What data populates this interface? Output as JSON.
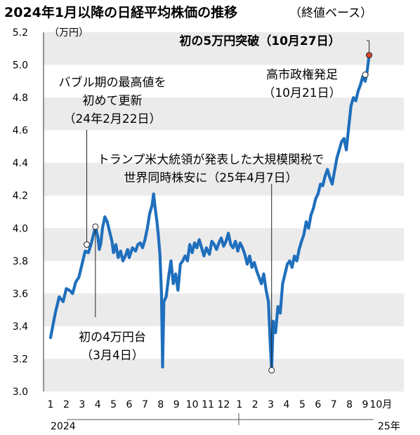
{
  "chart_data": {
    "type": "line",
    "title": "2024年1月以降の日経平均株価の推移",
    "subtitle": "（終値ベース）",
    "ylabel": "（万円）",
    "ylim": [
      3.0,
      5.2
    ],
    "yticks": [
      "3.0",
      "3.2",
      "3.4",
      "3.6",
      "3.8",
      "4.0",
      "4.2",
      "4.4",
      "4.6",
      "4.8",
      "5.0",
      "5.2"
    ],
    "xticks": [
      "1",
      "2",
      "3",
      "4",
      "5",
      "6",
      "7",
      "8",
      "9",
      "10",
      "11",
      "12",
      "1",
      "2",
      "3",
      "4",
      "5",
      "6",
      "7",
      "8",
      "9",
      "10月"
    ],
    "year_labels": [
      "2024",
      "25年"
    ],
    "grid": "horizontal bands",
    "line_color": "#1f6fbd",
    "series": [
      {
        "values": [
          [
            0.0,
            3.33
          ],
          [
            0.3,
            3.48
          ],
          [
            0.55,
            3.58
          ],
          [
            0.8,
            3.55
          ],
          [
            1.0,
            3.63
          ],
          [
            1.2,
            3.62
          ],
          [
            1.4,
            3.6
          ],
          [
            1.6,
            3.67
          ],
          [
            1.8,
            3.7
          ],
          [
            2.0,
            3.78
          ],
          [
            2.2,
            3.86
          ],
          [
            2.4,
            3.85
          ],
          [
            2.6,
            3.91
          ],
          [
            2.75,
            3.97
          ],
          [
            2.85,
            4.01
          ],
          [
            3.0,
            3.95
          ],
          [
            3.1,
            3.87
          ],
          [
            3.2,
            3.91
          ],
          [
            3.3,
            4.0
          ],
          [
            3.45,
            4.07
          ],
          [
            3.6,
            4.04
          ],
          [
            3.75,
            3.98
          ],
          [
            3.9,
            3.92
          ],
          [
            4.0,
            3.85
          ],
          [
            4.15,
            3.9
          ],
          [
            4.3,
            3.82
          ],
          [
            4.45,
            3.86
          ],
          [
            4.6,
            3.8
          ],
          [
            4.75,
            3.83
          ],
          [
            4.9,
            3.87
          ],
          [
            5.0,
            3.82
          ],
          [
            5.2,
            3.88
          ],
          [
            5.4,
            3.86
          ],
          [
            5.55,
            3.9
          ],
          [
            5.7,
            3.91
          ],
          [
            5.85,
            3.88
          ],
          [
            6.0,
            3.93
          ],
          [
            6.15,
            4.0
          ],
          [
            6.3,
            4.09
          ],
          [
            6.45,
            4.14
          ],
          [
            6.55,
            4.21
          ],
          [
            6.65,
            4.12
          ],
          [
            6.75,
            4.05
          ],
          [
            6.85,
            3.96
          ],
          [
            6.95,
            3.84
          ],
          [
            7.05,
            3.6
          ],
          [
            7.12,
            3.15
          ],
          [
            7.2,
            3.55
          ],
          [
            7.35,
            3.58
          ],
          [
            7.5,
            3.7
          ],
          [
            7.65,
            3.8
          ],
          [
            7.8,
            3.66
          ],
          [
            7.95,
            3.72
          ],
          [
            8.1,
            3.62
          ],
          [
            8.25,
            3.78
          ],
          [
            8.4,
            3.8
          ],
          [
            8.55,
            3.83
          ],
          [
            8.7,
            3.8
          ],
          [
            8.85,
            3.9
          ],
          [
            9.0,
            3.85
          ],
          [
            9.15,
            3.91
          ],
          [
            9.3,
            3.88
          ],
          [
            9.45,
            3.93
          ],
          [
            9.6,
            3.88
          ],
          [
            9.75,
            3.83
          ],
          [
            9.9,
            3.88
          ],
          [
            10.1,
            3.84
          ],
          [
            10.25,
            3.92
          ],
          [
            10.4,
            3.9
          ],
          [
            10.55,
            3.87
          ],
          [
            10.7,
            3.91
          ],
          [
            10.85,
            3.94
          ],
          [
            11.0,
            3.89
          ],
          [
            11.15,
            3.92
          ],
          [
            11.3,
            3.97
          ],
          [
            11.45,
            3.9
          ],
          [
            11.6,
            3.88
          ],
          [
            11.75,
            3.92
          ],
          [
            11.9,
            3.86
          ],
          [
            12.05,
            3.91
          ],
          [
            12.2,
            3.88
          ],
          [
            12.35,
            3.84
          ],
          [
            12.5,
            3.78
          ],
          [
            12.65,
            3.83
          ],
          [
            12.8,
            3.76
          ],
          [
            12.95,
            3.79
          ],
          [
            13.1,
            3.74
          ],
          [
            13.25,
            3.7
          ],
          [
            13.4,
            3.66
          ],
          [
            13.55,
            3.72
          ],
          [
            13.7,
            3.62
          ],
          [
            13.85,
            3.55
          ],
          [
            13.95,
            3.32
          ],
          [
            14.05,
            3.13
          ],
          [
            14.15,
            3.43
          ],
          [
            14.3,
            3.36
          ],
          [
            14.45,
            3.52
          ],
          [
            14.6,
            3.48
          ],
          [
            14.75,
            3.66
          ],
          [
            14.9,
            3.72
          ],
          [
            15.05,
            3.78
          ],
          [
            15.2,
            3.8
          ],
          [
            15.35,
            3.76
          ],
          [
            15.5,
            3.83
          ],
          [
            15.65,
            3.8
          ],
          [
            15.8,
            3.87
          ],
          [
            15.95,
            3.92
          ],
          [
            16.1,
            3.96
          ],
          [
            16.25,
            4.04
          ],
          [
            16.4,
            4.0
          ],
          [
            16.55,
            4.08
          ],
          [
            16.7,
            4.12
          ],
          [
            16.85,
            4.18
          ],
          [
            17.0,
            4.21
          ],
          [
            17.15,
            4.27
          ],
          [
            17.3,
            4.26
          ],
          [
            17.45,
            4.32
          ],
          [
            17.6,
            4.36
          ],
          [
            17.75,
            4.31
          ],
          [
            17.9,
            4.27
          ],
          [
            18.05,
            4.35
          ],
          [
            18.2,
            4.43
          ],
          [
            18.35,
            4.48
          ],
          [
            18.5,
            4.53
          ],
          [
            18.65,
            4.55
          ],
          [
            18.8,
            4.48
          ],
          [
            18.95,
            4.62
          ],
          [
            19.1,
            4.75
          ],
          [
            19.25,
            4.8
          ],
          [
            19.4,
            4.78
          ],
          [
            19.55,
            4.84
          ],
          [
            19.7,
            4.88
          ],
          [
            19.85,
            4.93
          ],
          [
            20.0,
            4.9
          ],
          [
            20.12,
            4.96
          ],
          [
            20.25,
            5.06
          ]
        ]
      }
    ],
    "annotations": [
      {
        "text_lines": [
          "初の4万円台",
          "（3月4日）"
        ]
      },
      {
        "text_lines": [
          "バブル期の最高値を",
          "初めて更新",
          "（24年2月22日）"
        ]
      },
      {
        "text_lines": [
          "トランプ米大統領が発表した大規模関税で",
          "世界同時株安に（25年4月7日）"
        ]
      },
      {
        "text_lines": [
          "高市政権発足",
          "（10月21日）"
        ]
      },
      {
        "text_lines": [
          "初の5万円突破（10月27日）"
        ]
      }
    ]
  }
}
